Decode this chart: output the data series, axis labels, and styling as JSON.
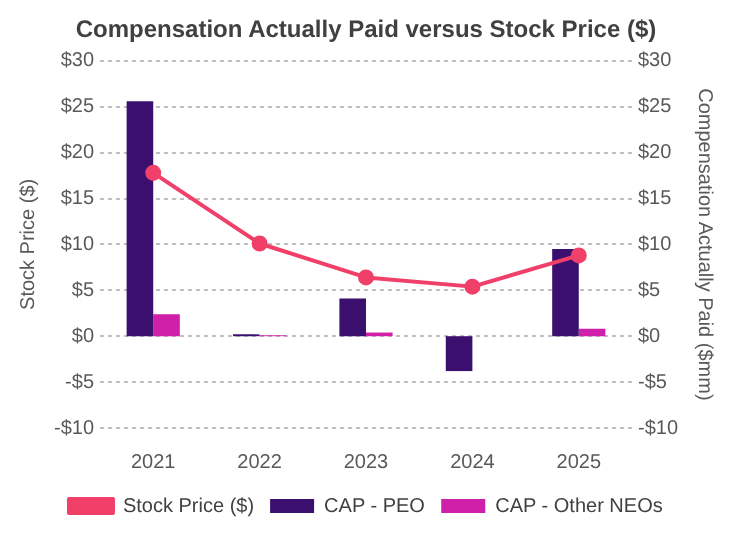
{
  "chart_data": {
    "type": "bar",
    "title": "Compensation Actually Paid versus Stock Price ($)",
    "ylabel": "Stock Price ($)",
    "y2label": "Compensation Actually Paid ($mm)",
    "categories": [
      "2021",
      "2022",
      "2023",
      "2024",
      "2025"
    ],
    "series": [
      {
        "name": "CAP - PEO",
        "color": "#3b0f6e",
        "axis": "y2",
        "values": [
          25.6,
          0.2,
          4.1,
          -3.8,
          9.5
        ]
      },
      {
        "name": "CAP - Other NEOs",
        "color": "#d01fa8",
        "axis": "y2",
        "values": [
          2.4,
          0.1,
          0.4,
          null,
          0.8
        ]
      },
      {
        "name": "Stock Price ($)",
        "type": "line",
        "color": "#f0406a",
        "axis": "y",
        "marker": "circle",
        "values": [
          17.8,
          10.1,
          6.4,
          5.4,
          8.8
        ]
      }
    ],
    "ylim": [
      -10,
      30
    ],
    "yticks": [
      {
        "value": -10,
        "label": "-$10"
      },
      {
        "value": -5,
        "label": "-$5"
      },
      {
        "value": 0,
        "label": "$0"
      },
      {
        "value": 5,
        "label": "$5"
      },
      {
        "value": 10,
        "label": "$10"
      },
      {
        "value": 15,
        "label": "$15"
      },
      {
        "value": 20,
        "label": "$20"
      },
      {
        "value": 25,
        "label": "$25"
      },
      {
        "value": 30,
        "label": "$30"
      }
    ],
    "y2lim": [
      -10,
      30
    ],
    "y2ticks": [
      {
        "value": -10,
        "label": "-$10"
      },
      {
        "value": -5,
        "label": "-$5"
      },
      {
        "value": 0,
        "label": "$0"
      },
      {
        "value": 5,
        "label": "$5"
      },
      {
        "value": 10,
        "label": "$10"
      },
      {
        "value": 15,
        "label": "$15"
      },
      {
        "value": 20,
        "label": "$20"
      },
      {
        "value": 25,
        "label": "$25"
      },
      {
        "value": 30,
        "label": "$30"
      }
    ],
    "grid": "y",
    "legend": "bottom"
  }
}
